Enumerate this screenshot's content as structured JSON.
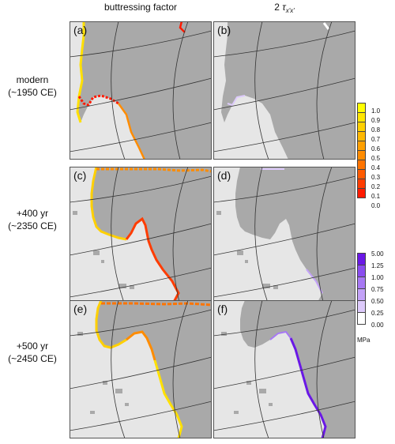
{
  "columns": [
    {
      "title": "buttressing factor"
    },
    {
      "title_prefix": "2",
      "title_symbol": "τ",
      "title_subscript": "x'x'"
    }
  ],
  "rows": [
    {
      "line1": "modern",
      "line2": "(~1950 CE)"
    },
    {
      "line1": "+400 yr",
      "line2": "(~2350 CE)"
    },
    {
      "line1": "+500 yr",
      "line2": "(~2450 CE)"
    }
  ],
  "panels": [
    "(a)",
    "(b)",
    "(c)",
    "(d)",
    "(e)",
    "(f)"
  ],
  "buttressing_colorbar": {
    "ticks": [
      "1.0",
      "0.9",
      "0.8",
      "0.7",
      "0.6",
      "0.5",
      "0.4",
      "0.3",
      "0.2",
      "0.1",
      "0.0"
    ],
    "colors": [
      "#ffff00",
      "#ffe600",
      "#ffd000",
      "#ffb800",
      "#ffa000",
      "#ff8c00",
      "#ff7400",
      "#ff5a00",
      "#ff3c00",
      "#ff1a00"
    ]
  },
  "stress_colorbar": {
    "ticks": [
      "5.00",
      "1.25",
      "1.00",
      "0.75",
      "0.50",
      "0.25",
      "0.00"
    ],
    "colors": [
      "#6a18e6",
      "#8a4cf0",
      "#a778f4",
      "#c3a2f8",
      "#ddcafb",
      "#ffffff"
    ],
    "unit": "MPa"
  },
  "colors": {
    "grounded_ice": "#a9a9a9",
    "ice_shelf": "#e6e6e6",
    "graticule": "#333333",
    "panel_border": "#555555"
  }
}
